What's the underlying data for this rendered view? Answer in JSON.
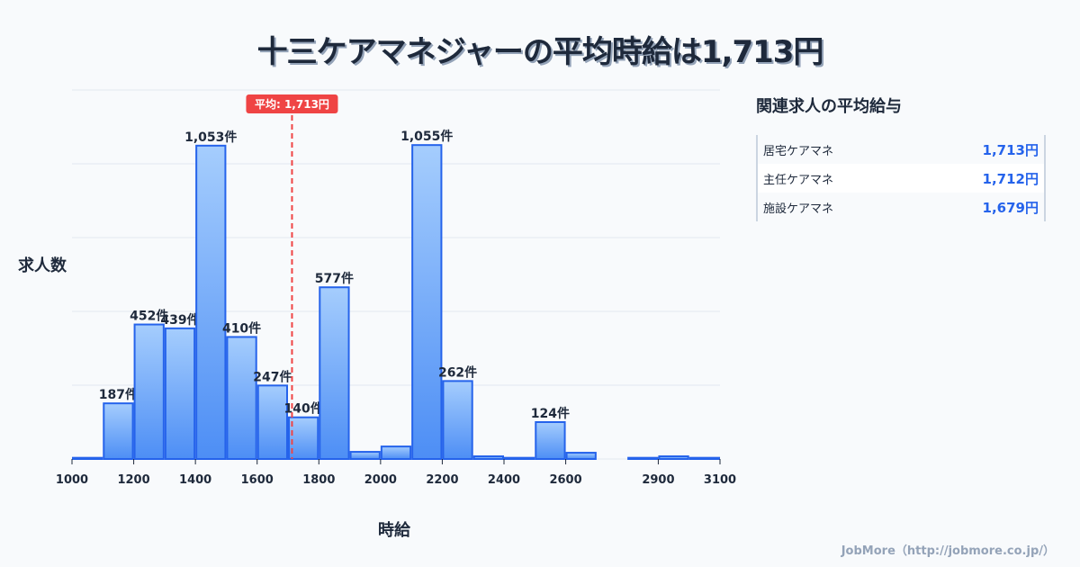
{
  "title": "十三ケアマネジャーの平均時給は1,713円",
  "chart_data": {
    "type": "bar",
    "title": "十三ケアマネジャーの平均時給は1,713円",
    "xlabel": "時給",
    "ylabel": "求人数",
    "bin_starts": [
      1000,
      1100,
      1200,
      1300,
      1400,
      1500,
      1600,
      1700,
      1800,
      1900,
      2000,
      2100,
      2200,
      2300,
      2400,
      2500,
      2600,
      2700,
      2800,
      2900,
      3000
    ],
    "values": [
      4,
      187,
      452,
      439,
      1053,
      410,
      247,
      140,
      577,
      24,
      42,
      1055,
      262,
      9,
      4,
      124,
      21,
      0,
      4,
      9,
      4
    ],
    "labels": {
      "1": "187件",
      "2": "452件",
      "3": "439件",
      "4": "1,053件",
      "5": "410件",
      "6": "247件",
      "7": "140件",
      "8": "577件",
      "11": "1,055件",
      "12": "262件",
      "15": "124件"
    },
    "xticks": [
      1000,
      1200,
      1400,
      1600,
      1800,
      2000,
      2200,
      2400,
      2600,
      2900,
      3100
    ],
    "xlim": [
      1000,
      3100
    ],
    "ylim": [
      0,
      1240
    ],
    "grid": true,
    "mean": 1713,
    "mean_label": "平均: 1,713円"
  },
  "panel": {
    "title": "関連求人の平均給与",
    "rows": [
      {
        "name": "居宅ケアマネ",
        "value": "1,713円"
      },
      {
        "name": "主任ケアマネ",
        "value": "1,712円"
      },
      {
        "name": "施設ケアマネ",
        "value": "1,679円"
      }
    ]
  },
  "footer": "JobMore（http://jobmore.co.jp/）",
  "colors": {
    "bar_top": "#a5cdfd",
    "bar_bottom": "#4d8ef5",
    "bar_stroke": "#2563eb",
    "mean": "#ef4444"
  }
}
